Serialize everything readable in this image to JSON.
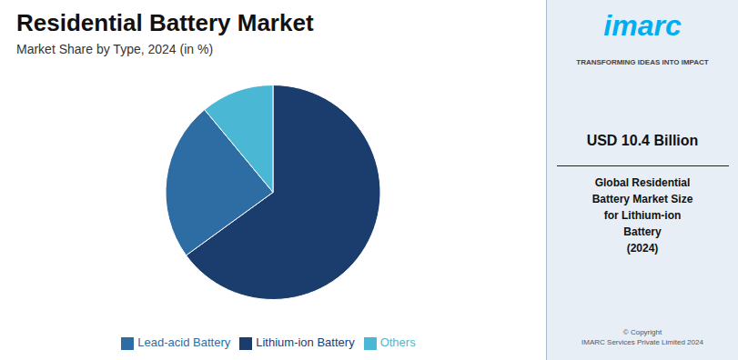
{
  "chart_data": {
    "type": "pie",
    "title": "Residential Battery Market",
    "subtitle": "Market Share by Type, 2024 (in %)",
    "categories": [
      "Lithium-ion Battery",
      "Lead-acid Battery",
      "Others"
    ],
    "values": [
      65,
      24,
      11
    ],
    "colors": [
      "#1b3d6e",
      "#2e6da4",
      "#4ab8d4"
    ],
    "legend": "bottom",
    "annotations": [
      "imarc",
      "TRANSFORMING IDEAS INTO IMPACT",
      "USD 10.4 Billion",
      "Global Residential\nBattery Market Size\nfor Lithium-ion\nBattery\n(2024)",
      "© Copyright\nIMARC Services Private Limited 2024"
    ]
  }
}
